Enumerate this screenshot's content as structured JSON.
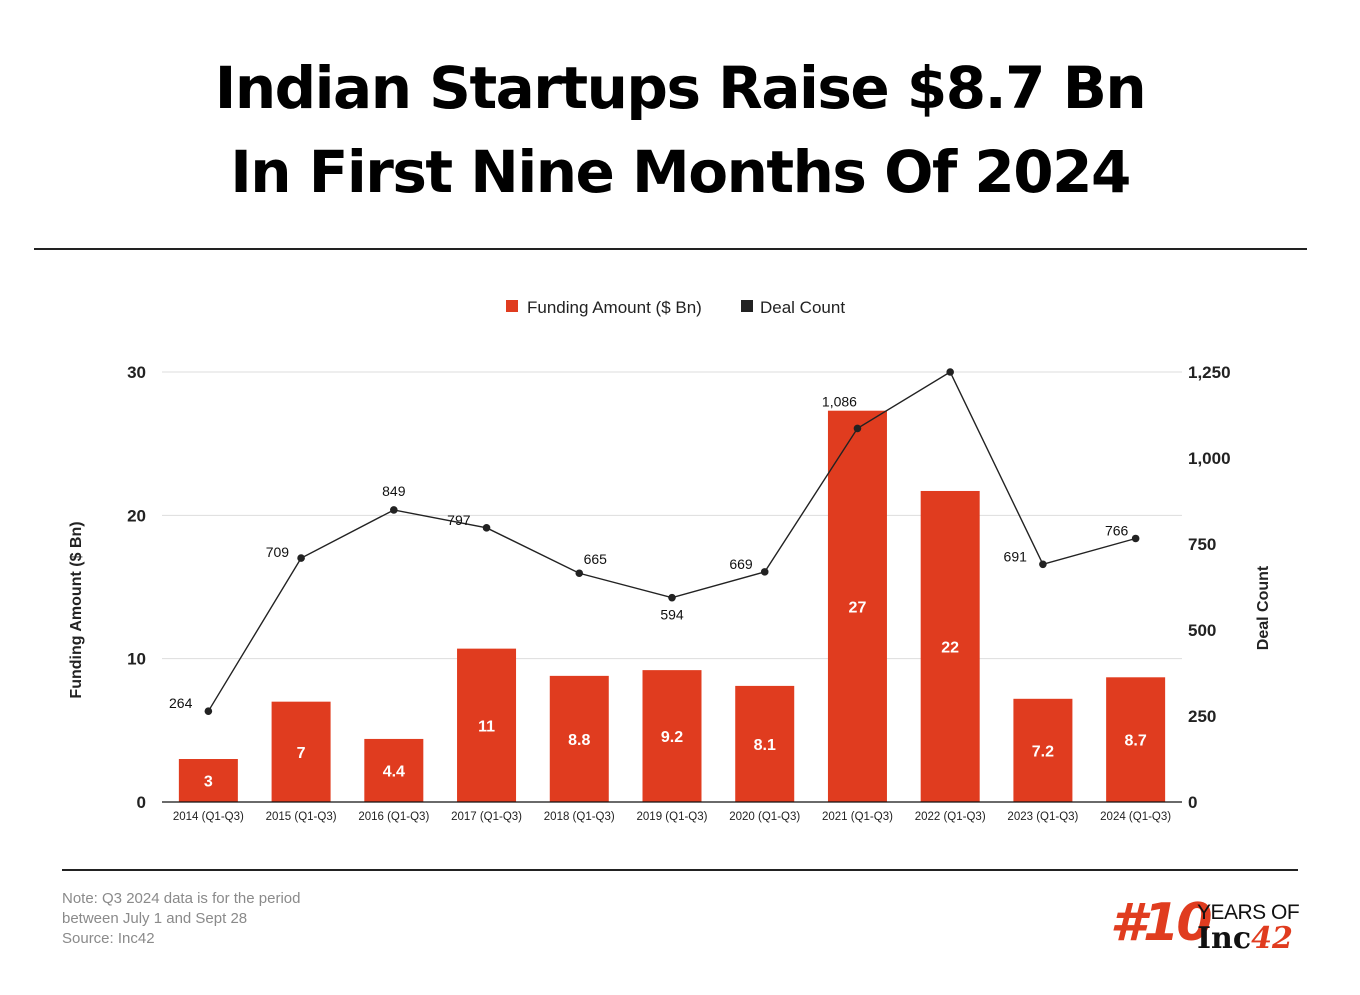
{
  "header": {
    "title_line1": "Indian Startups Raise $8.7 Bn",
    "title_line2": "In First Nine Months Of 2024"
  },
  "colors": {
    "bar": "#e03c1f",
    "line": "#222222",
    "grid": "#dddddd",
    "axis": "#111111"
  },
  "chart_data": {
    "type": "bar",
    "categories": [
      "2014 (Q1-Q3)",
      "2015 (Q1-Q3)",
      "2016 (Q1-Q3)",
      "2017 (Q1-Q3)",
      "2018 (Q1-Q3)",
      "2019 (Q1-Q3)",
      "2020 (Q1-Q3)",
      "2021 (Q1-Q3)",
      "2022 (Q1-Q3)",
      "2023 (Q1-Q3)",
      "2024 (Q1-Q3)"
    ],
    "series": [
      {
        "name": "Funding Amount ($ Bn)",
        "type": "bar",
        "axis": "left",
        "values": [
          3,
          7,
          4.4,
          10.7,
          8.8,
          9.2,
          8.1,
          27.3,
          21.7,
          7.2,
          8.7
        ],
        "data_labels": [
          "3",
          "7",
          "4.4",
          "11",
          "8.8",
          "9.2",
          "8.1",
          "27",
          "22",
          "7.2",
          "8.7"
        ]
      },
      {
        "name": "Deal Count",
        "type": "line",
        "axis": "right",
        "values": [
          264,
          709,
          849,
          797,
          665,
          594,
          669,
          1086,
          1250,
          691,
          766
        ],
        "data_labels": [
          "264",
          "709",
          "849",
          "797",
          "665",
          "594",
          "669",
          "1,086",
          "",
          "691",
          "766"
        ]
      }
    ],
    "ylabel": "Funding Amount ($ Bn)",
    "ylabel_right": "Deal Count",
    "ylim": [
      0,
      30
    ],
    "ylim_right": [
      0,
      1250
    ],
    "yticks": [
      "0",
      "10",
      "20",
      "30"
    ],
    "yticks_right": [
      "0",
      "250",
      "500",
      "750",
      "1,000",
      "1,250"
    ],
    "grid": true,
    "legend_position": "top-center"
  },
  "footer": {
    "note_line1": "Note: Q3 2024 data is for the period",
    "note_line2": "between July 1 and Sept 28",
    "source": "Source: Inc42"
  },
  "logo": {
    "hash_text": "#10",
    "years_text": "YEARS OF",
    "brand_text": "Inc",
    "brand_number": "42"
  }
}
